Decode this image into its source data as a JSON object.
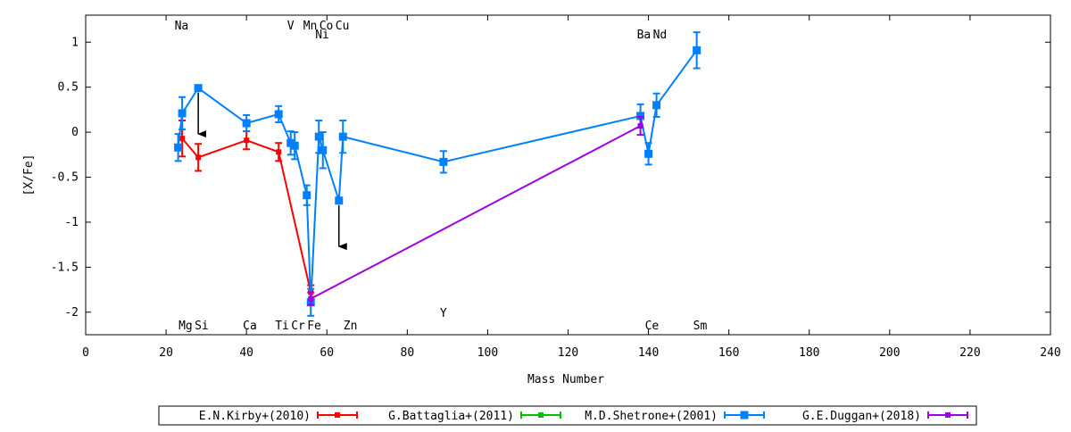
{
  "chart_data": {
    "type": "scatter",
    "xlabel": "Mass Number",
    "ylabel": "[X/Fe]",
    "xlim": [
      0,
      240
    ],
    "ylim": [
      -2.25,
      1.3
    ],
    "xticks": [
      0,
      20,
      40,
      60,
      80,
      100,
      120,
      140,
      160,
      180,
      200,
      220,
      240
    ],
    "yticks": [
      -2,
      -1.5,
      -1,
      -0.5,
      0,
      0.5,
      1
    ],
    "ytick_labels": [
      "-2",
      "-1.5",
      "-1",
      "-0.5",
      "0",
      "0.5",
      "1"
    ],
    "grid": false,
    "legend_position": "bottom",
    "element_labels": [
      {
        "text": "Na",
        "x": 23,
        "row": "top"
      },
      {
        "text": "V",
        "x": 51,
        "row": "top"
      },
      {
        "text": "Mn",
        "x": 55,
        "row": "top"
      },
      {
        "text": "Co",
        "x": 59,
        "row": "top"
      },
      {
        "text": "Cu",
        "x": 63,
        "row": "top"
      },
      {
        "text": "Ni",
        "x": 58,
        "row": "top2"
      },
      {
        "text": "Ba",
        "x": 138,
        "row": "top2"
      },
      {
        "text": "Nd",
        "x": 142,
        "row": "top2"
      },
      {
        "text": "Mg",
        "x": 24,
        "row": "bottom"
      },
      {
        "text": "Si",
        "x": 28,
        "row": "bottom"
      },
      {
        "text": "Ca",
        "x": 40,
        "row": "bottom"
      },
      {
        "text": "Ti",
        "x": 48,
        "row": "bottom"
      },
      {
        "text": "Cr",
        "x": 52,
        "row": "bottom"
      },
      {
        "text": "Fe",
        "x": 56,
        "row": "bottom"
      },
      {
        "text": "Zn",
        "x": 65,
        "row": "bottom"
      },
      {
        "text": "Y",
        "x": 89,
        "row": "bottom2"
      },
      {
        "text": "Ce",
        "x": 140,
        "row": "bottom"
      },
      {
        "text": "Sm",
        "x": 152,
        "row": "bottom"
      }
    ],
    "series": [
      {
        "name": "E.N.Kirby+(2010)",
        "color": "#ff0000",
        "marker": "bar",
        "points": [
          {
            "x": 24,
            "y": -0.07,
            "err": 0.2
          },
          {
            "x": 28,
            "y": -0.28,
            "err": 0.15
          },
          {
            "x": 40,
            "y": -0.09,
            "err": 0.1
          },
          {
            "x": 48,
            "y": -0.22,
            "err": 0.1
          },
          {
            "x": 56,
            "y": -1.78,
            "err": 0.08
          }
        ]
      },
      {
        "name": "G.Battaglia+(2011)",
        "color": "#00c000",
        "marker": "bar",
        "points": []
      },
      {
        "name": "M.D.Shetrone+(2001)",
        "color": "#0080ff",
        "marker": "square",
        "points": [
          {
            "x": 23,
            "y": -0.17,
            "err": 0.15
          },
          {
            "x": 24,
            "y": 0.21,
            "err": 0.18
          },
          {
            "x": 28,
            "y": 0.49,
            "err": 0.02
          },
          {
            "x": 40,
            "y": 0.1,
            "err": 0.09
          },
          {
            "x": 48,
            "y": 0.2,
            "err": 0.09
          },
          {
            "x": 51,
            "y": -0.12,
            "err": 0.13
          },
          {
            "x": 52,
            "y": -0.15,
            "err": 0.15
          },
          {
            "x": 55,
            "y": -0.7,
            "err": 0.11
          },
          {
            "x": 56,
            "y": -1.89,
            "err": 0.15
          },
          {
            "x": 58,
            "y": -0.05,
            "err": 0.18
          },
          {
            "x": 59,
            "y": -0.2,
            "err": 0.2
          },
          {
            "x": 63,
            "y": -0.76,
            "err": 0.0
          },
          {
            "x": 64,
            "y": -0.05,
            "err": 0.18
          },
          {
            "x": 89,
            "y": -0.33,
            "err": 0.12
          },
          {
            "x": 138,
            "y": 0.18,
            "err": 0.13
          },
          {
            "x": 140,
            "y": -0.24,
            "err": 0.12
          },
          {
            "x": 142,
            "y": 0.3,
            "err": 0.13
          },
          {
            "x": 152,
            "y": 0.91,
            "err": 0.2
          }
        ]
      },
      {
        "name": "G.E.Duggan+(2018)",
        "color": "#a000e0",
        "marker": "bar",
        "points": [
          {
            "x": 56,
            "y": -1.85,
            "err": 0.07
          },
          {
            "x": 138,
            "y": 0.07,
            "err": 0.1
          }
        ]
      }
    ],
    "upper_limits": [
      {
        "x": 28,
        "y_from": 0.49,
        "y_to": -0.02
      },
      {
        "x": 63,
        "y_from": -0.76,
        "y_to": -1.27
      }
    ]
  }
}
